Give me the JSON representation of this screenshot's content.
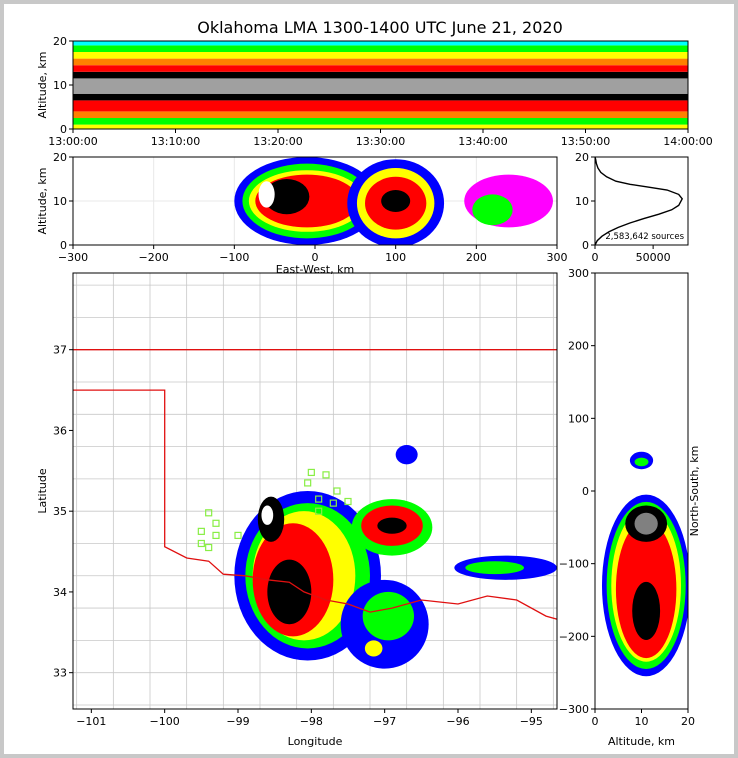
{
  "title": "Oklahoma LMA 1300-1400 UTC June 21, 2020",
  "colors": {
    "state_border": "#e01010",
    "county_lines": "#c8c8c8",
    "station_marker": "#88ee44",
    "density_scale": [
      "#ff00ff",
      "#0000ff",
      "#00ff00",
      "#ffff00",
      "#ff8000",
      "#ff0000",
      "#ff0060",
      "#000000",
      "#808080",
      "#ffffff"
    ]
  },
  "chart_data": [
    {
      "type": "heatmap",
      "name": "time-height",
      "xlabel": "",
      "ylabel": "Altitude, km",
      "xlim": [
        "13:00:00",
        "14:00:00"
      ],
      "ylim": [
        0,
        20
      ],
      "x_ticks": [
        "13:00:00",
        "13:10:00",
        "13:20:00",
        "13:30:00",
        "13:40:00",
        "13:50:00",
        "14:00:00"
      ],
      "y_ticks": [
        0,
        10,
        20
      ],
      "bands": [
        {
          "z0": 0,
          "z1": 1,
          "color": "#ffff00"
        },
        {
          "z0": 1,
          "z1": 2.5,
          "color": "#00ff00"
        },
        {
          "z0": 2.5,
          "z1": 4,
          "color": "#ff8000"
        },
        {
          "z0": 4,
          "z1": 6.5,
          "color": "#ff0000"
        },
        {
          "z0": 6.5,
          "z1": 8,
          "color": "#000000"
        },
        {
          "z0": 8,
          "z1": 11.5,
          "color": "#a0a0a0"
        },
        {
          "z0": 11.5,
          "z1": 13,
          "color": "#000000"
        },
        {
          "z0": 13,
          "z1": 14.5,
          "color": "#ff0000"
        },
        {
          "z0": 14.5,
          "z1": 16,
          "color": "#ff8000"
        },
        {
          "z0": 16,
          "z1": 17.5,
          "color": "#ffff00"
        },
        {
          "z0": 17.5,
          "z1": 19,
          "color": "#00ff00"
        },
        {
          "z0": 19,
          "z1": 20,
          "color": "#00ffff"
        }
      ]
    },
    {
      "type": "heatmap",
      "name": "east-west-altitude",
      "xlabel": "East-West, km",
      "ylabel": "Altitude, km",
      "xlim": [
        -300,
        300
      ],
      "ylim": [
        0,
        20
      ],
      "x_ticks": [
        -300,
        -200,
        -100,
        0,
        100,
        200,
        300
      ],
      "y_ticks": [
        0,
        10,
        20
      ],
      "blobs": [
        {
          "x": -10,
          "z": 10,
          "rx": 90,
          "rz": 10,
          "color": "#0000ff"
        },
        {
          "x": -10,
          "z": 10,
          "rx": 80,
          "rz": 8.5,
          "color": "#00ff00"
        },
        {
          "x": -10,
          "z": 10,
          "rx": 72,
          "rz": 7,
          "color": "#ffff00"
        },
        {
          "x": -10,
          "z": 10,
          "rx": 64,
          "rz": 6,
          "color": "#ff0000"
        },
        {
          "x": -35,
          "z": 11,
          "rx": 28,
          "rz": 4,
          "color": "#000000"
        },
        {
          "x": -60,
          "z": 11.5,
          "rx": 10,
          "rz": 3,
          "color": "#ffffff"
        },
        {
          "x": 100,
          "z": 9.5,
          "rx": 60,
          "rz": 10,
          "color": "#0000ff"
        },
        {
          "x": 100,
          "z": 9.5,
          "rx": 48,
          "rz": 8,
          "color": "#ffff00"
        },
        {
          "x": 100,
          "z": 9.5,
          "rx": 38,
          "rz": 6,
          "color": "#ff0000"
        },
        {
          "x": 100,
          "z": 10,
          "rx": 18,
          "rz": 2.5,
          "color": "#000000"
        },
        {
          "x": 240,
          "z": 10,
          "rx": 55,
          "rz": 6,
          "color": "#ff00ff"
        },
        {
          "x": 220,
          "z": 8,
          "rx": 25,
          "rz": 3.5,
          "color": "#00ff00"
        }
      ]
    },
    {
      "type": "line",
      "name": "altitude-histogram",
      "xlabel": "",
      "ylabel": "",
      "xlim": [
        0,
        80000
      ],
      "ylim": [
        0,
        20
      ],
      "x_ticks": [
        0,
        50000
      ],
      "y_ticks": [
        0,
        10,
        20
      ],
      "annotation": "2,583,642 sources",
      "x": [
        0,
        2000,
        6000,
        12000,
        20000,
        30000,
        42000,
        55000,
        66000,
        72000,
        75000,
        72000,
        62000,
        45000,
        30000,
        18000,
        10000,
        5000,
        2500,
        1200,
        500,
        0
      ],
      "y": [
        0,
        1,
        2,
        3,
        4,
        5,
        6,
        7,
        8,
        9,
        10.5,
        11.5,
        12.5,
        13.2,
        13.8,
        14.5,
        15.5,
        16.5,
        17.5,
        18.5,
        19.5,
        20
      ]
    },
    {
      "type": "heatmap",
      "name": "plan-view",
      "xlabel": "Longitude",
      "ylabel": "Latitude",
      "xlim": [
        -101.25,
        -94.65
      ],
      "ylim": [
        32.55,
        37.95
      ],
      "x_ticks": [
        -101,
        -100,
        -99,
        -98,
        -97,
        -96,
        -95
      ],
      "y_ticks": [
        33,
        34,
        35,
        36,
        37
      ],
      "blobs": [
        {
          "lon": -98.05,
          "lat": 34.2,
          "rx": 1.0,
          "ry": 1.05,
          "color": "#0000ff"
        },
        {
          "lon": -98.05,
          "lat": 34.2,
          "rx": 0.85,
          "ry": 0.9,
          "color": "#00ff00"
        },
        {
          "lon": -98.1,
          "lat": 34.2,
          "rx": 0.7,
          "ry": 0.8,
          "color": "#ffff00"
        },
        {
          "lon": -98.25,
          "lat": 34.15,
          "rx": 0.55,
          "ry": 0.7,
          "color": "#ff0000"
        },
        {
          "lon": -98.3,
          "lat": 34.0,
          "rx": 0.3,
          "ry": 0.4,
          "color": "#000000"
        },
        {
          "lon": -98.55,
          "lat": 34.9,
          "rx": 0.18,
          "ry": 0.28,
          "color": "#000000"
        },
        {
          "lon": -98.6,
          "lat": 34.95,
          "rx": 0.08,
          "ry": 0.12,
          "color": "#ffffff"
        },
        {
          "lon": -96.9,
          "lat": 34.8,
          "rx": 0.55,
          "ry": 0.35,
          "color": "#00ff00"
        },
        {
          "lon": -96.9,
          "lat": 34.82,
          "rx": 0.42,
          "ry": 0.25,
          "color": "#ff0000"
        },
        {
          "lon": -96.9,
          "lat": 34.82,
          "rx": 0.2,
          "ry": 0.1,
          "color": "#000000"
        },
        {
          "lon": -97.0,
          "lat": 33.6,
          "rx": 0.6,
          "ry": 0.55,
          "color": "#0000ff"
        },
        {
          "lon": -96.95,
          "lat": 33.7,
          "rx": 0.35,
          "ry": 0.3,
          "color": "#00ff00"
        },
        {
          "lon": -97.15,
          "lat": 33.3,
          "rx": 0.12,
          "ry": 0.1,
          "color": "#ffff00"
        },
        {
          "lon": -95.35,
          "lat": 34.3,
          "rx": 0.7,
          "ry": 0.15,
          "color": "#0000ff"
        },
        {
          "lon": -95.5,
          "lat": 34.3,
          "rx": 0.4,
          "ry": 0.08,
          "color": "#00ff00"
        },
        {
          "lon": -96.7,
          "lat": 35.7,
          "rx": 0.15,
          "ry": 0.12,
          "color": "#0000ff"
        }
      ],
      "oklahoma_border": {
        "lon": [
          -103,
          -100,
          -100,
          -99.7,
          -99.4,
          -99.2,
          -98.9,
          -98.6,
          -98.3,
          -98.1,
          -97.8,
          -97.5,
          -97.2,
          -96.9,
          -96.5,
          -96.0,
          -95.6,
          -95.2,
          -94.8,
          -94.6
        ],
        "lat": [
          36.5,
          36.5,
          34.56,
          34.42,
          34.38,
          34.22,
          34.2,
          34.15,
          34.12,
          34.0,
          33.9,
          33.85,
          33.75,
          33.8,
          33.9,
          33.85,
          33.95,
          33.9,
          33.7,
          33.65
        ]
      },
      "kansas_border_lat": 37.0,
      "stations": [
        {
          "lon": -99.4,
          "lat": 34.98
        },
        {
          "lon": -99.3,
          "lat": 34.85
        },
        {
          "lon": -99.5,
          "lat": 34.75
        },
        {
          "lon": -99.3,
          "lat": 34.7
        },
        {
          "lon": -99.4,
          "lat": 34.55
        },
        {
          "lon": -99.5,
          "lat": 34.6
        },
        {
          "lon": -99.0,
          "lat": 34.7
        },
        {
          "lon": -98.0,
          "lat": 35.48
        },
        {
          "lon": -97.8,
          "lat": 35.45
        },
        {
          "lon": -98.05,
          "lat": 35.35
        },
        {
          "lon": -97.65,
          "lat": 35.25
        },
        {
          "lon": -97.5,
          "lat": 35.12
        },
        {
          "lon": -97.9,
          "lat": 35.15
        },
        {
          "lon": -97.7,
          "lat": 35.1
        },
        {
          "lon": -97.9,
          "lat": 35.0
        }
      ]
    },
    {
      "type": "heatmap",
      "name": "north-south-altitude",
      "xlabel": "Altitude, km",
      "ylabel": "North-South, km",
      "xlim": [
        0,
        20
      ],
      "ylim": [
        -300,
        300
      ],
      "x_ticks": [
        0,
        10,
        20
      ],
      "y_ticks": [
        -300,
        -200,
        -100,
        0,
        100,
        200,
        300
      ],
      "blobs": [
        {
          "z": 11,
          "y": -130,
          "rz": 9.5,
          "ry": 125,
          "color": "#0000ff"
        },
        {
          "z": 11,
          "y": -130,
          "rz": 8.5,
          "ry": 115,
          "color": "#00ff00"
        },
        {
          "z": 11,
          "y": -130,
          "rz": 7.5,
          "ry": 105,
          "color": "#ffff00"
        },
        {
          "z": 11,
          "y": -135,
          "rz": 6.5,
          "ry": 95,
          "color": "#ff0000"
        },
        {
          "z": 11,
          "y": -165,
          "rz": 3,
          "ry": 40,
          "color": "#000000"
        },
        {
          "z": 11,
          "y": -45,
          "rz": 4.5,
          "ry": 25,
          "color": "#000000"
        },
        {
          "z": 11,
          "y": -45,
          "rz": 2.5,
          "ry": 15,
          "color": "#808080"
        },
        {
          "z": 10,
          "y": 42,
          "rz": 2.5,
          "ry": 12,
          "color": "#0000ff"
        },
        {
          "z": 10,
          "y": 40,
          "rz": 1.5,
          "ry": 6,
          "color": "#00ff00"
        }
      ]
    }
  ]
}
